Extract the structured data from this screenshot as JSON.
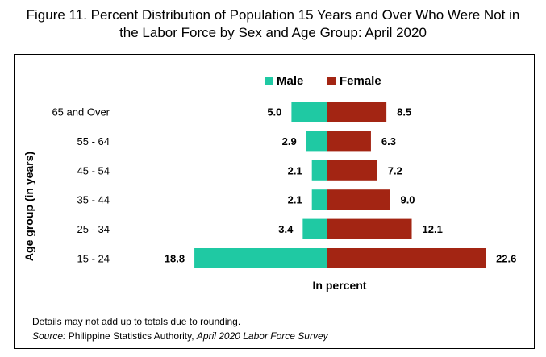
{
  "title_line1": "Figure 11. Percent Distribution of Population 15 Years and Over Who Were Not in",
  "title_line2": "the Labor Force by Sex and Age Group: April 2020",
  "footnote": "Details may not add up to totals due to rounding.",
  "source_label": "Source:",
  "source_org": " Philippine Statistics Authority, ",
  "source_survey": "April 2020 Labor Force Survey",
  "colors": {
    "male": "#1fc9a3",
    "female": "#a32513"
  },
  "chart_data": {
    "type": "bar",
    "orientation": "horizontal",
    "layout": "diverging",
    "categories": [
      "65  and Over",
      "55 - 64",
      "45 - 54",
      "35 - 44",
      "25 - 34",
      "15 - 24"
    ],
    "series": [
      {
        "name": "Male",
        "values": [
          5.0,
          2.9,
          2.1,
          2.1,
          3.4,
          18.8
        ]
      },
      {
        "name": "Female",
        "values": [
          8.5,
          6.3,
          7.2,
          9.0,
          12.1,
          22.6
        ]
      }
    ],
    "xlabel": "In percent",
    "ylabel": "Age group (in years)",
    "legend_position": "top",
    "grid": false
  }
}
